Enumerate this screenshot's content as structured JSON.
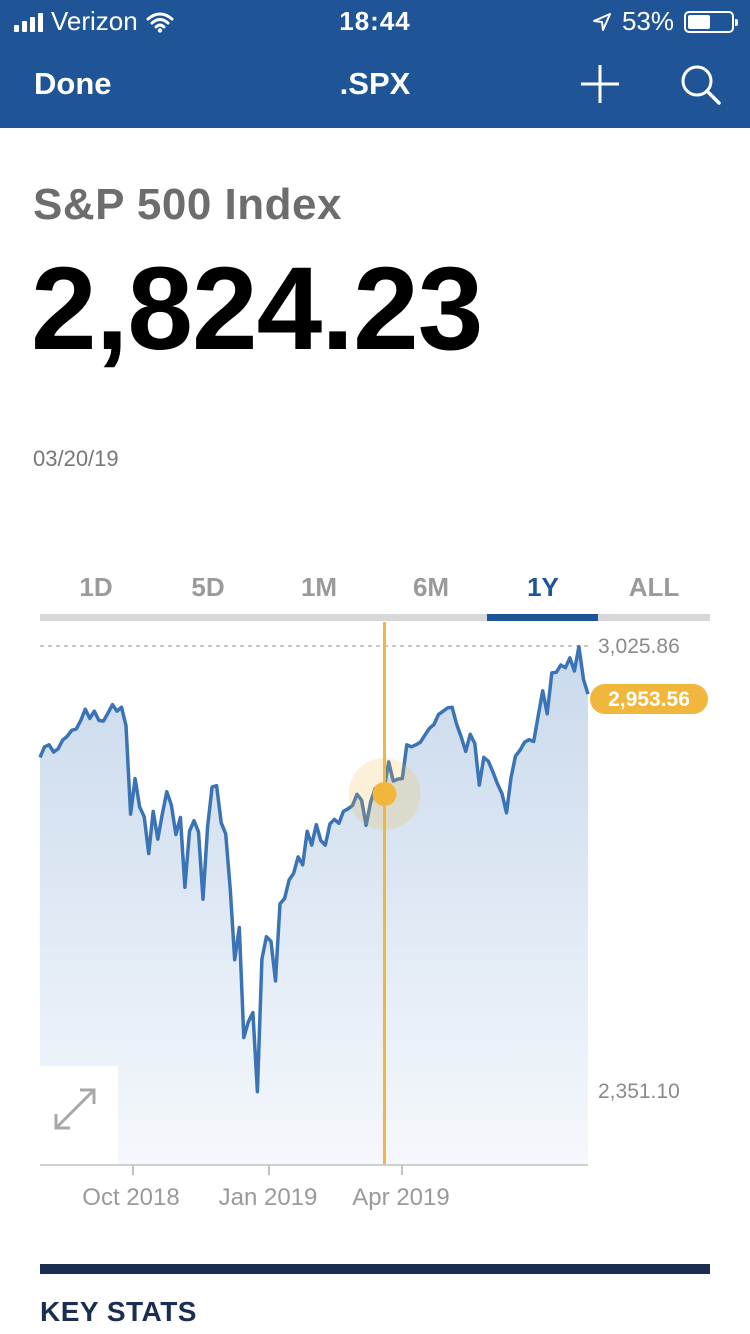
{
  "status": {
    "carrier": "Verizon",
    "time": "18:44",
    "battery": "53%",
    "battery_level": 0.53
  },
  "nav": {
    "done_label": "Done",
    "title": ".SPX"
  },
  "quote": {
    "name": "S&P 500 Index",
    "price": "2,824.23",
    "date": "03/20/19"
  },
  "tabs": [
    {
      "label": "1D",
      "active": false
    },
    {
      "label": "5D",
      "active": false
    },
    {
      "label": "1M",
      "active": false
    },
    {
      "label": "6M",
      "active": false
    },
    {
      "label": "1Y",
      "active": true
    },
    {
      "label": "ALL",
      "active": false
    }
  ],
  "colors": {
    "header": "#1f5597",
    "line": "#3b74b6",
    "area_top": "#c9d9ec",
    "cursor": "#f0b73c",
    "navy": "#1b2e52"
  },
  "chart_data": {
    "type": "area",
    "x_ticks": [
      "Oct 2018",
      "Jan 2019",
      "Apr 2019"
    ],
    "high_label": "3,025.86",
    "low_label": "2,351.10",
    "cursor_label": "2,953.56",
    "ylim": [
      2351.1,
      3025.86
    ],
    "series": [
      {
        "values": [
          2857,
          2873,
          2876,
          2865,
          2870,
          2883,
          2889,
          2898,
          2900,
          2913,
          2930,
          2916,
          2927,
          2913,
          2912,
          2924,
          2937,
          2927,
          2933,
          2905,
          2771,
          2825,
          2782,
          2767,
          2711,
          2775,
          2733,
          2771,
          2805,
          2785,
          2740,
          2766,
          2660,
          2745,
          2761,
          2744,
          2642,
          2752,
          2812,
          2814,
          2758,
          2741,
          2658,
          2550,
          2599,
          2432,
          2456,
          2470,
          2350,
          2551,
          2585,
          2578,
          2518,
          2635,
          2643,
          2671,
          2681,
          2706,
          2694,
          2745,
          2724,
          2755,
          2731,
          2724,
          2756,
          2763,
          2757,
          2775,
          2779,
          2784,
          2801,
          2792,
          2754,
          2789,
          2810,
          2812,
          2811,
          2850,
          2821,
          2824,
          2825,
          2876,
          2873,
          2876,
          2880,
          2891,
          2901,
          2907,
          2922,
          2927,
          2932,
          2933,
          2907,
          2888,
          2866,
          2892,
          2878,
          2815,
          2857,
          2851,
          2835,
          2817,
          2802,
          2773,
          2826,
          2859,
          2868,
          2880,
          2884,
          2881,
          2920,
          2958,
          2923,
          2985,
          2986,
          2997,
          2993,
          3008,
          2988,
          3025,
          2975,
          2953
        ]
      }
    ]
  },
  "key_stats": {
    "title": "KEY STATS"
  }
}
